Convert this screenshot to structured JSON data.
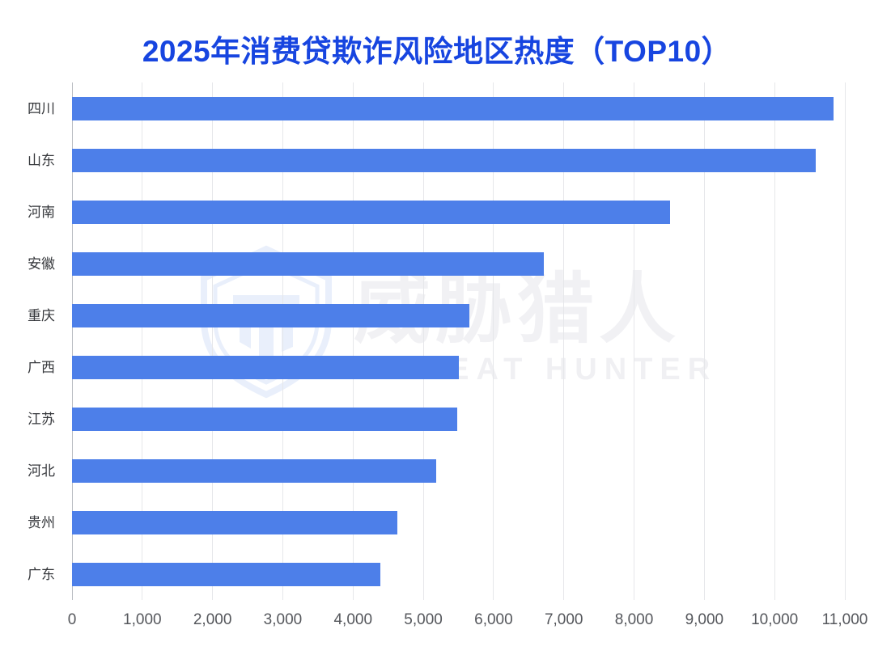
{
  "title": {
    "text": "2025年消费贷欺诈风险地区热度（TOP10）",
    "color": "#1745e0"
  },
  "watermark": {
    "cn_text": "威胁猎人",
    "en_text": "THREAT HUNTER",
    "logo": "threat-hunter-shield-logo",
    "tint": "#e9effb"
  },
  "chart_data": {
    "type": "bar",
    "orientation": "horizontal",
    "title": "2025年消费贷欺诈风险地区热度（TOP10）",
    "categories": [
      "四川",
      "山东",
      "河南",
      "安徽",
      "重庆",
      "广西",
      "江苏",
      "河北",
      "贵州",
      "广东"
    ],
    "values": [
      10840,
      10580,
      8510,
      6720,
      5660,
      5500,
      5480,
      5180,
      4630,
      4390
    ],
    "xlabel": "",
    "ylabel": "",
    "xlim": [
      0,
      11000
    ],
    "tick_step": 1000,
    "x_tick_labels": [
      "0",
      "1,000",
      "2,000",
      "3,000",
      "4,000",
      "5,000",
      "6,000",
      "7,000",
      "8,000",
      "9,000",
      "10,000",
      "11,000"
    ],
    "grid": true,
    "legend": "none",
    "bar_color": "#4d7fe9",
    "grid_color": "#e6e7ea",
    "axis_line_color": "#b9bcc2",
    "x_label_color": "#55575c",
    "y_label_color": "#35373b"
  }
}
